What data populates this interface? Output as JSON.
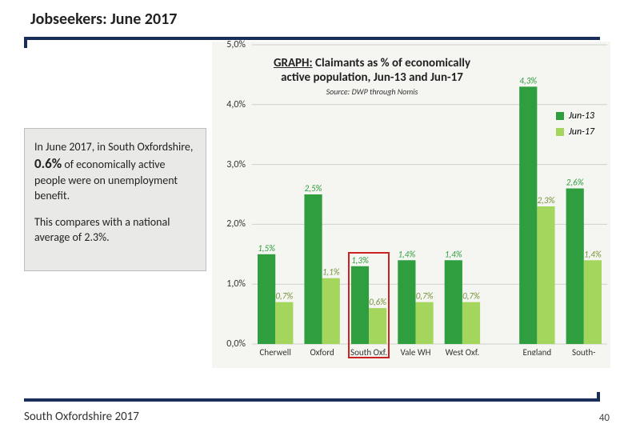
{
  "title": "Jobseekers: June 2017",
  "sidebar": {
    "para1_prefix": "In June 2017, in South Oxfordshire, ",
    "para1_highlight": "0.6%",
    "para1_suffix": " of economically active people were on unemployment benefit.",
    "para2": "This compares with a national average of 2.3%."
  },
  "chart": {
    "type": "bar",
    "title_line1": "GRAPH: Claimants as % of economically active population, Jun-13 and Jun-17",
    "source": "Source: DWP through Nomis",
    "background_color": "#f5f6f1",
    "ylim": [
      0,
      5
    ],
    "ytick_step": 1,
    "yticks": [
      "0,0%",
      "1,0%",
      "2,0%",
      "3,0%",
      "4,0%",
      "5,0%"
    ],
    "series": [
      {
        "name": "Jun-13",
        "color": "#2e9e3f",
        "label_color": "#2e9e3f"
      },
      {
        "name": "Jun-17",
        "color": "#a4d65e",
        "label_color": "#77933c"
      }
    ],
    "categories": [
      "Cherwell",
      "Oxford",
      "South Oxf.",
      "Vale WH",
      "West Oxf.",
      "England",
      "South-East"
    ],
    "gap_after_index": 4,
    "values_jun13": [
      1.5,
      2.5,
      1.3,
      1.4,
      1.4,
      4.3,
      2.6
    ],
    "values_jun17": [
      0.7,
      1.1,
      0.6,
      0.7,
      0.7,
      2.3,
      1.4
    ],
    "labels_jun13": [
      "1,5%",
      "2,5%",
      "1,3%",
      "1,4%",
      "1,4%",
      "4,3%",
      "2,6%"
    ],
    "labels_jun17": [
      "0,7%",
      "1,1%",
      "0,6%",
      "0,7%",
      "0,7%",
      "2,3%",
      "1,4%"
    ],
    "bar_width": 0.38,
    "highlight_category_index": 2,
    "highlight_border_color": "#c22"
  },
  "footer": "South Oxfordshire 2017",
  "pagenum": "40"
}
